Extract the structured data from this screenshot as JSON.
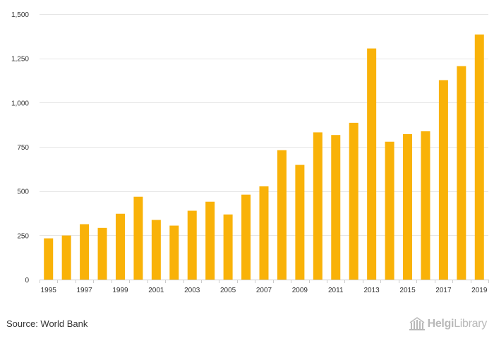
{
  "chart_data": {
    "type": "bar",
    "title": "",
    "xlabel": "",
    "ylabel": "",
    "categories": [
      "1995",
      "1996",
      "1997",
      "1998",
      "1999",
      "2000",
      "2001",
      "2002",
      "2003",
      "2004",
      "2005",
      "2006",
      "2007",
      "2008",
      "2009",
      "2010",
      "2011",
      "2012",
      "2013",
      "2014",
      "2015",
      "2016",
      "2017",
      "2018",
      "2019"
    ],
    "values": [
      233,
      249,
      313,
      292,
      372,
      468,
      337,
      305,
      389,
      440,
      368,
      480,
      527,
      731,
      648,
      832,
      817,
      886,
      1306,
      779,
      822,
      838,
      1127,
      1206,
      1385
    ],
    "x_tick_labels": [
      "1995",
      "1997",
      "1999",
      "2001",
      "2003",
      "2005",
      "2007",
      "2009",
      "2011",
      "2013",
      "2015",
      "2017",
      "2019"
    ],
    "y_ticks": [
      0,
      250,
      500,
      750,
      1000,
      1250,
      1500
    ],
    "y_tick_labels": [
      "0",
      "250",
      "500",
      "750",
      "1,000",
      "1,250",
      "1,500"
    ],
    "ylim": [
      0,
      1500
    ],
    "grid": true,
    "bar_color": "#f9b208",
    "grid_color": "#e6e6e6"
  },
  "footer": {
    "source_text": "Source: World Bank",
    "brand_helgi": "Helgi",
    "brand_library": "Library"
  }
}
